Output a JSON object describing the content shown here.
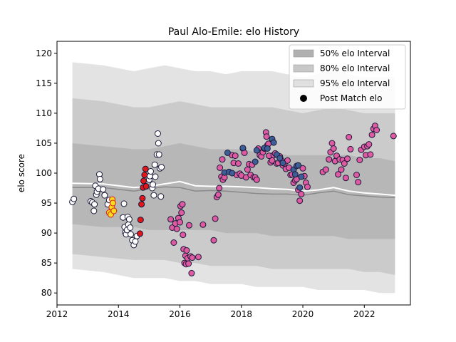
{
  "chart_data": {
    "type": "scatter",
    "title": "Paul Alo-Emile: elo History",
    "xlabel": "",
    "ylabel": "elo score",
    "xlim": [
      2012.0,
      2023.5
    ],
    "ylim": [
      78.0,
      122.0
    ],
    "xticks": [
      2012,
      2014,
      2016,
      2018,
      2020,
      2022
    ],
    "yticks": [
      80,
      85,
      90,
      95,
      100,
      105,
      110,
      115,
      120
    ],
    "grid": false,
    "legend_position": "top-right",
    "legend": [
      {
        "label": "50% elo Interval",
        "kind": "band",
        "color": "#b0b0b0"
      },
      {
        "label": "80% elo Interval",
        "kind": "band",
        "color": "#c8c8c8"
      },
      {
        "label": "95% elo Interval",
        "kind": "band",
        "color": "#e0e0e0"
      },
      {
        "label": "Post Match elo",
        "kind": "marker",
        "color": "#000000"
      }
    ],
    "bands": {
      "x": [
        2012.5,
        2013.5,
        2014.5,
        2015.0,
        2015.5,
        2016.0,
        2016.5,
        2017.0,
        2017.5,
        2018.0,
        2018.5,
        2019.0,
        2019.5,
        2020.0,
        2020.5,
        2021.0,
        2021.5,
        2022.0,
        2022.5,
        2023.0
      ],
      "mean": [
        98.3,
        98.2,
        97.6,
        97.8,
        98.2,
        98.6,
        97.9,
        97.8,
        97.8,
        97.7,
        97.6,
        97.4,
        97.3,
        97.0,
        97.2,
        97.6,
        97.0,
        96.7,
        96.5,
        96.3
      ],
      "median": [
        97.6,
        97.6,
        97.0,
        97.4,
        97.7,
        97.6,
        97.0,
        97.1,
        97.0,
        96.8,
        96.6,
        96.5,
        96.5,
        96.3,
        96.7,
        97.0,
        96.4,
        96.2,
        96.0,
        95.9
      ],
      "p50": [
        [
          91.5,
          105.0
        ],
        [
          91.0,
          104.5
        ],
        [
          91.0,
          104.0
        ],
        [
          90.5,
          104.0
        ],
        [
          90.5,
          104.5
        ],
        [
          90.5,
          105.0
        ],
        [
          90.5,
          104.5
        ],
        [
          90.5,
          104.0
        ],
        [
          90.0,
          104.0
        ],
        [
          90.0,
          104.0
        ],
        [
          90.0,
          103.5
        ],
        [
          89.5,
          103.5
        ],
        [
          89.5,
          103.0
        ],
        [
          89.5,
          103.0
        ],
        [
          89.5,
          103.0
        ],
        [
          89.5,
          103.0
        ],
        [
          89.0,
          103.0
        ],
        [
          89.0,
          102.5
        ],
        [
          89.0,
          102.5
        ],
        [
          89.0,
          102.0
        ]
      ],
      "p80": [
        [
          86.5,
          112.5
        ],
        [
          86.0,
          112.0
        ],
        [
          85.5,
          111.0
        ],
        [
          85.5,
          111.0
        ],
        [
          85.5,
          111.5
        ],
        [
          85.0,
          112.0
        ],
        [
          85.0,
          111.5
        ],
        [
          84.5,
          111.0
        ],
        [
          84.5,
          111.0
        ],
        [
          84.5,
          111.0
        ],
        [
          84.5,
          111.0
        ],
        [
          84.0,
          111.0
        ],
        [
          84.0,
          110.5
        ],
        [
          84.0,
          110.0
        ],
        [
          84.0,
          110.5
        ],
        [
          84.0,
          111.0
        ],
        [
          84.0,
          110.5
        ],
        [
          83.5,
          110.0
        ],
        [
          83.5,
          110.0
        ],
        [
          83.0,
          110.0
        ]
      ],
      "p95": [
        [
          84.0,
          118.5
        ],
        [
          83.5,
          118.0
        ],
        [
          82.5,
          117.0
        ],
        [
          82.5,
          117.5
        ],
        [
          82.5,
          118.0
        ],
        [
          82.0,
          117.5
        ],
        [
          82.0,
          117.0
        ],
        [
          81.5,
          117.0
        ],
        [
          81.5,
          116.5
        ],
        [
          81.5,
          117.0
        ],
        [
          81.0,
          117.0
        ],
        [
          81.0,
          117.0
        ],
        [
          81.0,
          116.5
        ],
        [
          81.0,
          116.0
        ],
        [
          80.5,
          116.5
        ],
        [
          80.5,
          117.0
        ],
        [
          80.5,
          116.5
        ],
        [
          80.5,
          116.0
        ],
        [
          80.0,
          116.0
        ],
        [
          80.0,
          116.0
        ]
      ]
    },
    "series": [
      {
        "fill": "#ffffff",
        "points": [
          [
            2012.5,
            95.2
          ],
          [
            2012.55,
            95.7
          ],
          [
            2013.1,
            95.3
          ],
          [
            2013.15,
            95.1
          ],
          [
            2013.2,
            93.7
          ],
          [
            2013.22,
            94.8
          ],
          [
            2013.25,
            97.9
          ],
          [
            2013.28,
            96.4
          ],
          [
            2013.3,
            96.9
          ],
          [
            2013.35,
            97.4
          ],
          [
            2013.38,
            99.8
          ],
          [
            2013.4,
            99.0
          ],
          [
            2013.5,
            97.3
          ],
          [
            2013.55,
            96.3
          ],
          [
            2013.65,
            94.8
          ],
          [
            2013.7,
            95.5
          ],
          [
            2014.15,
            92.6
          ],
          [
            2014.18,
            94.9
          ],
          [
            2014.2,
            91.0
          ],
          [
            2014.22,
            90.1
          ],
          [
            2014.25,
            89.8
          ],
          [
            2014.28,
            90.5
          ],
          [
            2014.3,
            92.7
          ],
          [
            2014.32,
            91.4
          ],
          [
            2014.35,
            92.3
          ],
          [
            2014.38,
            90.9
          ],
          [
            2014.4,
            89.8
          ],
          [
            2014.45,
            88.8
          ],
          [
            2014.5,
            88.0
          ],
          [
            2014.55,
            88.6
          ],
          [
            2014.6,
            89.5
          ],
          [
            2015.0,
            98.9
          ],
          [
            2015.02,
            99.5
          ],
          [
            2015.05,
            100.3
          ],
          [
            2015.1,
            97.5
          ],
          [
            2015.12,
            98.1
          ],
          [
            2015.15,
            96.3
          ],
          [
            2015.18,
            101.4
          ],
          [
            2015.2,
            99.4
          ],
          [
            2015.25,
            103.1
          ],
          [
            2015.28,
            106.6
          ],
          [
            2015.3,
            105.0
          ],
          [
            2015.32,
            103.1
          ],
          [
            2015.35,
            100.8
          ],
          [
            2015.38,
            96.1
          ],
          [
            2015.4,
            101.0
          ]
        ]
      },
      {
        "fill": "#f5dd1e",
        "points": [
          [
            2013.7,
            93.4
          ],
          [
            2013.75,
            93.1
          ],
          [
            2013.78,
            94.3
          ],
          [
            2013.8,
            95.6
          ],
          [
            2013.82,
            95.0
          ],
          [
            2013.85,
            93.7
          ]
        ]
      },
      {
        "fill": "#e01818",
        "points": [
          [
            2014.7,
            89.9
          ],
          [
            2014.72,
            92.2
          ],
          [
            2014.75,
            94.8
          ],
          [
            2014.78,
            95.8
          ],
          [
            2014.8,
            97.6
          ],
          [
            2014.82,
            98.7
          ],
          [
            2014.85,
            99.7
          ],
          [
            2014.88,
            100.7
          ],
          [
            2014.9,
            97.8
          ]
        ]
      },
      {
        "fill": "#e05aa2",
        "points": [
          [
            2015.7,
            92.3
          ],
          [
            2015.75,
            90.9
          ],
          [
            2015.8,
            88.4
          ],
          [
            2015.85,
            91.6
          ],
          [
            2015.9,
            90.7
          ],
          [
            2015.95,
            92.5
          ],
          [
            2016.0,
            91.8
          ],
          [
            2016.02,
            94.5
          ],
          [
            2016.05,
            93.4
          ],
          [
            2016.08,
            94.8
          ],
          [
            2016.1,
            89.7
          ],
          [
            2016.12,
            87.3
          ],
          [
            2016.15,
            85.0
          ],
          [
            2016.18,
            86.2
          ],
          [
            2016.2,
            84.8
          ],
          [
            2016.22,
            87.1
          ],
          [
            2016.25,
            85.8
          ],
          [
            2016.28,
            84.9
          ],
          [
            2016.3,
            91.3
          ],
          [
            2016.35,
            86.1
          ],
          [
            2016.38,
            83.3
          ],
          [
            2016.4,
            85.9
          ],
          [
            2016.6,
            86.0
          ],
          [
            2016.75,
            91.4
          ],
          [
            2017.1,
            88.8
          ],
          [
            2017.15,
            92.4
          ],
          [
            2017.2,
            96.0
          ],
          [
            2017.25,
            96.4
          ],
          [
            2017.28,
            97.5
          ],
          [
            2017.3,
            100.9
          ],
          [
            2017.35,
            99.4
          ],
          [
            2017.38,
            102.3
          ],
          [
            2017.4,
            98.9
          ],
          [
            2017.45,
            99.3
          ],
          [
            2017.7,
            103.0
          ],
          [
            2017.75,
            101.7
          ],
          [
            2017.8,
            102.9
          ],
          [
            2017.85,
            99.7
          ],
          [
            2017.9,
            101.6
          ],
          [
            2017.95,
            99.9
          ],
          [
            2018.0,
            99.6
          ],
          [
            2018.05,
            104.1
          ],
          [
            2018.1,
            103.4
          ],
          [
            2018.15,
            99.3
          ],
          [
            2018.2,
            100.6
          ],
          [
            2018.25,
            101.5
          ],
          [
            2018.3,
            99.7
          ],
          [
            2018.35,
            101.4
          ],
          [
            2018.4,
            99.3
          ],
          [
            2018.45,
            99.3
          ],
          [
            2018.5,
            98.9
          ],
          [
            2018.55,
            104.1
          ],
          [
            2018.6,
            103.0
          ],
          [
            2018.65,
            102.8
          ],
          [
            2018.7,
            103.5
          ],
          [
            2018.75,
            104.1
          ],
          [
            2018.8,
            106.8
          ],
          [
            2018.82,
            106.1
          ],
          [
            2018.85,
            104.7
          ],
          [
            2018.88,
            104.9
          ],
          [
            2018.9,
            102.9
          ],
          [
            2018.95,
            101.8
          ],
          [
            2019.0,
            102.1
          ],
          [
            2019.05,
            103.0
          ],
          [
            2019.1,
            103.3
          ],
          [
            2019.15,
            101.6
          ],
          [
            2019.2,
            101.7
          ],
          [
            2019.25,
            102.8
          ],
          [
            2019.3,
            102.2
          ],
          [
            2019.35,
            101.3
          ],
          [
            2019.4,
            101.6
          ],
          [
            2019.45,
            100.7
          ],
          [
            2019.5,
            102.1
          ],
          [
            2019.55,
            100.9
          ],
          [
            2019.6,
            99.7
          ],
          [
            2019.65,
            99.8
          ],
          [
            2019.7,
            98.4
          ],
          [
            2019.75,
            98.8
          ],
          [
            2019.8,
            99.0
          ],
          [
            2019.85,
            97.2
          ],
          [
            2019.9,
            95.4
          ],
          [
            2019.95,
            96.5
          ],
          [
            2020.0,
            100.8
          ],
          [
            2020.05,
            99.5
          ],
          [
            2020.1,
            98.4
          ],
          [
            2020.15,
            97.7
          ],
          [
            2020.65,
            100.2
          ],
          [
            2020.75,
            100.6
          ],
          [
            2020.85,
            102.3
          ],
          [
            2020.9,
            103.5
          ],
          [
            2020.95,
            105.0
          ],
          [
            2021.0,
            104.1
          ],
          [
            2021.05,
            102.0
          ],
          [
            2021.1,
            102.9
          ],
          [
            2021.15,
            99.8
          ],
          [
            2021.2,
            102.3
          ],
          [
            2021.25,
            100.6
          ],
          [
            2021.3,
            102.2
          ],
          [
            2021.35,
            101.6
          ],
          [
            2021.4,
            99.2
          ],
          [
            2021.45,
            102.4
          ],
          [
            2021.5,
            106.0
          ],
          [
            2021.55,
            104.0
          ],
          [
            2021.75,
            99.7
          ],
          [
            2021.8,
            98.5
          ],
          [
            2021.85,
            102.2
          ],
          [
            2021.9,
            103.9
          ],
          [
            2022.0,
            104.4
          ],
          [
            2022.05,
            103.0
          ],
          [
            2022.1,
            104.5
          ],
          [
            2022.15,
            104.8
          ],
          [
            2022.2,
            103.1
          ],
          [
            2022.25,
            106.4
          ],
          [
            2022.3,
            107.4
          ],
          [
            2022.35,
            107.9
          ],
          [
            2022.4,
            107.2
          ],
          [
            2022.95,
            106.2
          ]
        ]
      },
      {
        "fill": "#3d5e96",
        "points": [
          [
            2017.45,
            100.1
          ],
          [
            2017.55,
            103.4
          ],
          [
            2017.6,
            100.2
          ],
          [
            2017.7,
            100.0
          ],
          [
            2018.05,
            104.2
          ],
          [
            2018.45,
            101.9
          ],
          [
            2018.5,
            103.8
          ],
          [
            2018.75,
            104.2
          ],
          [
            2018.85,
            104.1
          ],
          [
            2019.0,
            105.7
          ],
          [
            2019.05,
            105.1
          ],
          [
            2019.15,
            103.1
          ],
          [
            2019.25,
            102.5
          ],
          [
            2019.35,
            101.7
          ],
          [
            2019.7,
            100.6
          ],
          [
            2019.75,
            99.8
          ],
          [
            2019.8,
            101.2
          ],
          [
            2019.85,
            101.3
          ],
          [
            2019.9,
            97.6
          ],
          [
            2019.95,
            99.4
          ]
        ]
      }
    ]
  }
}
